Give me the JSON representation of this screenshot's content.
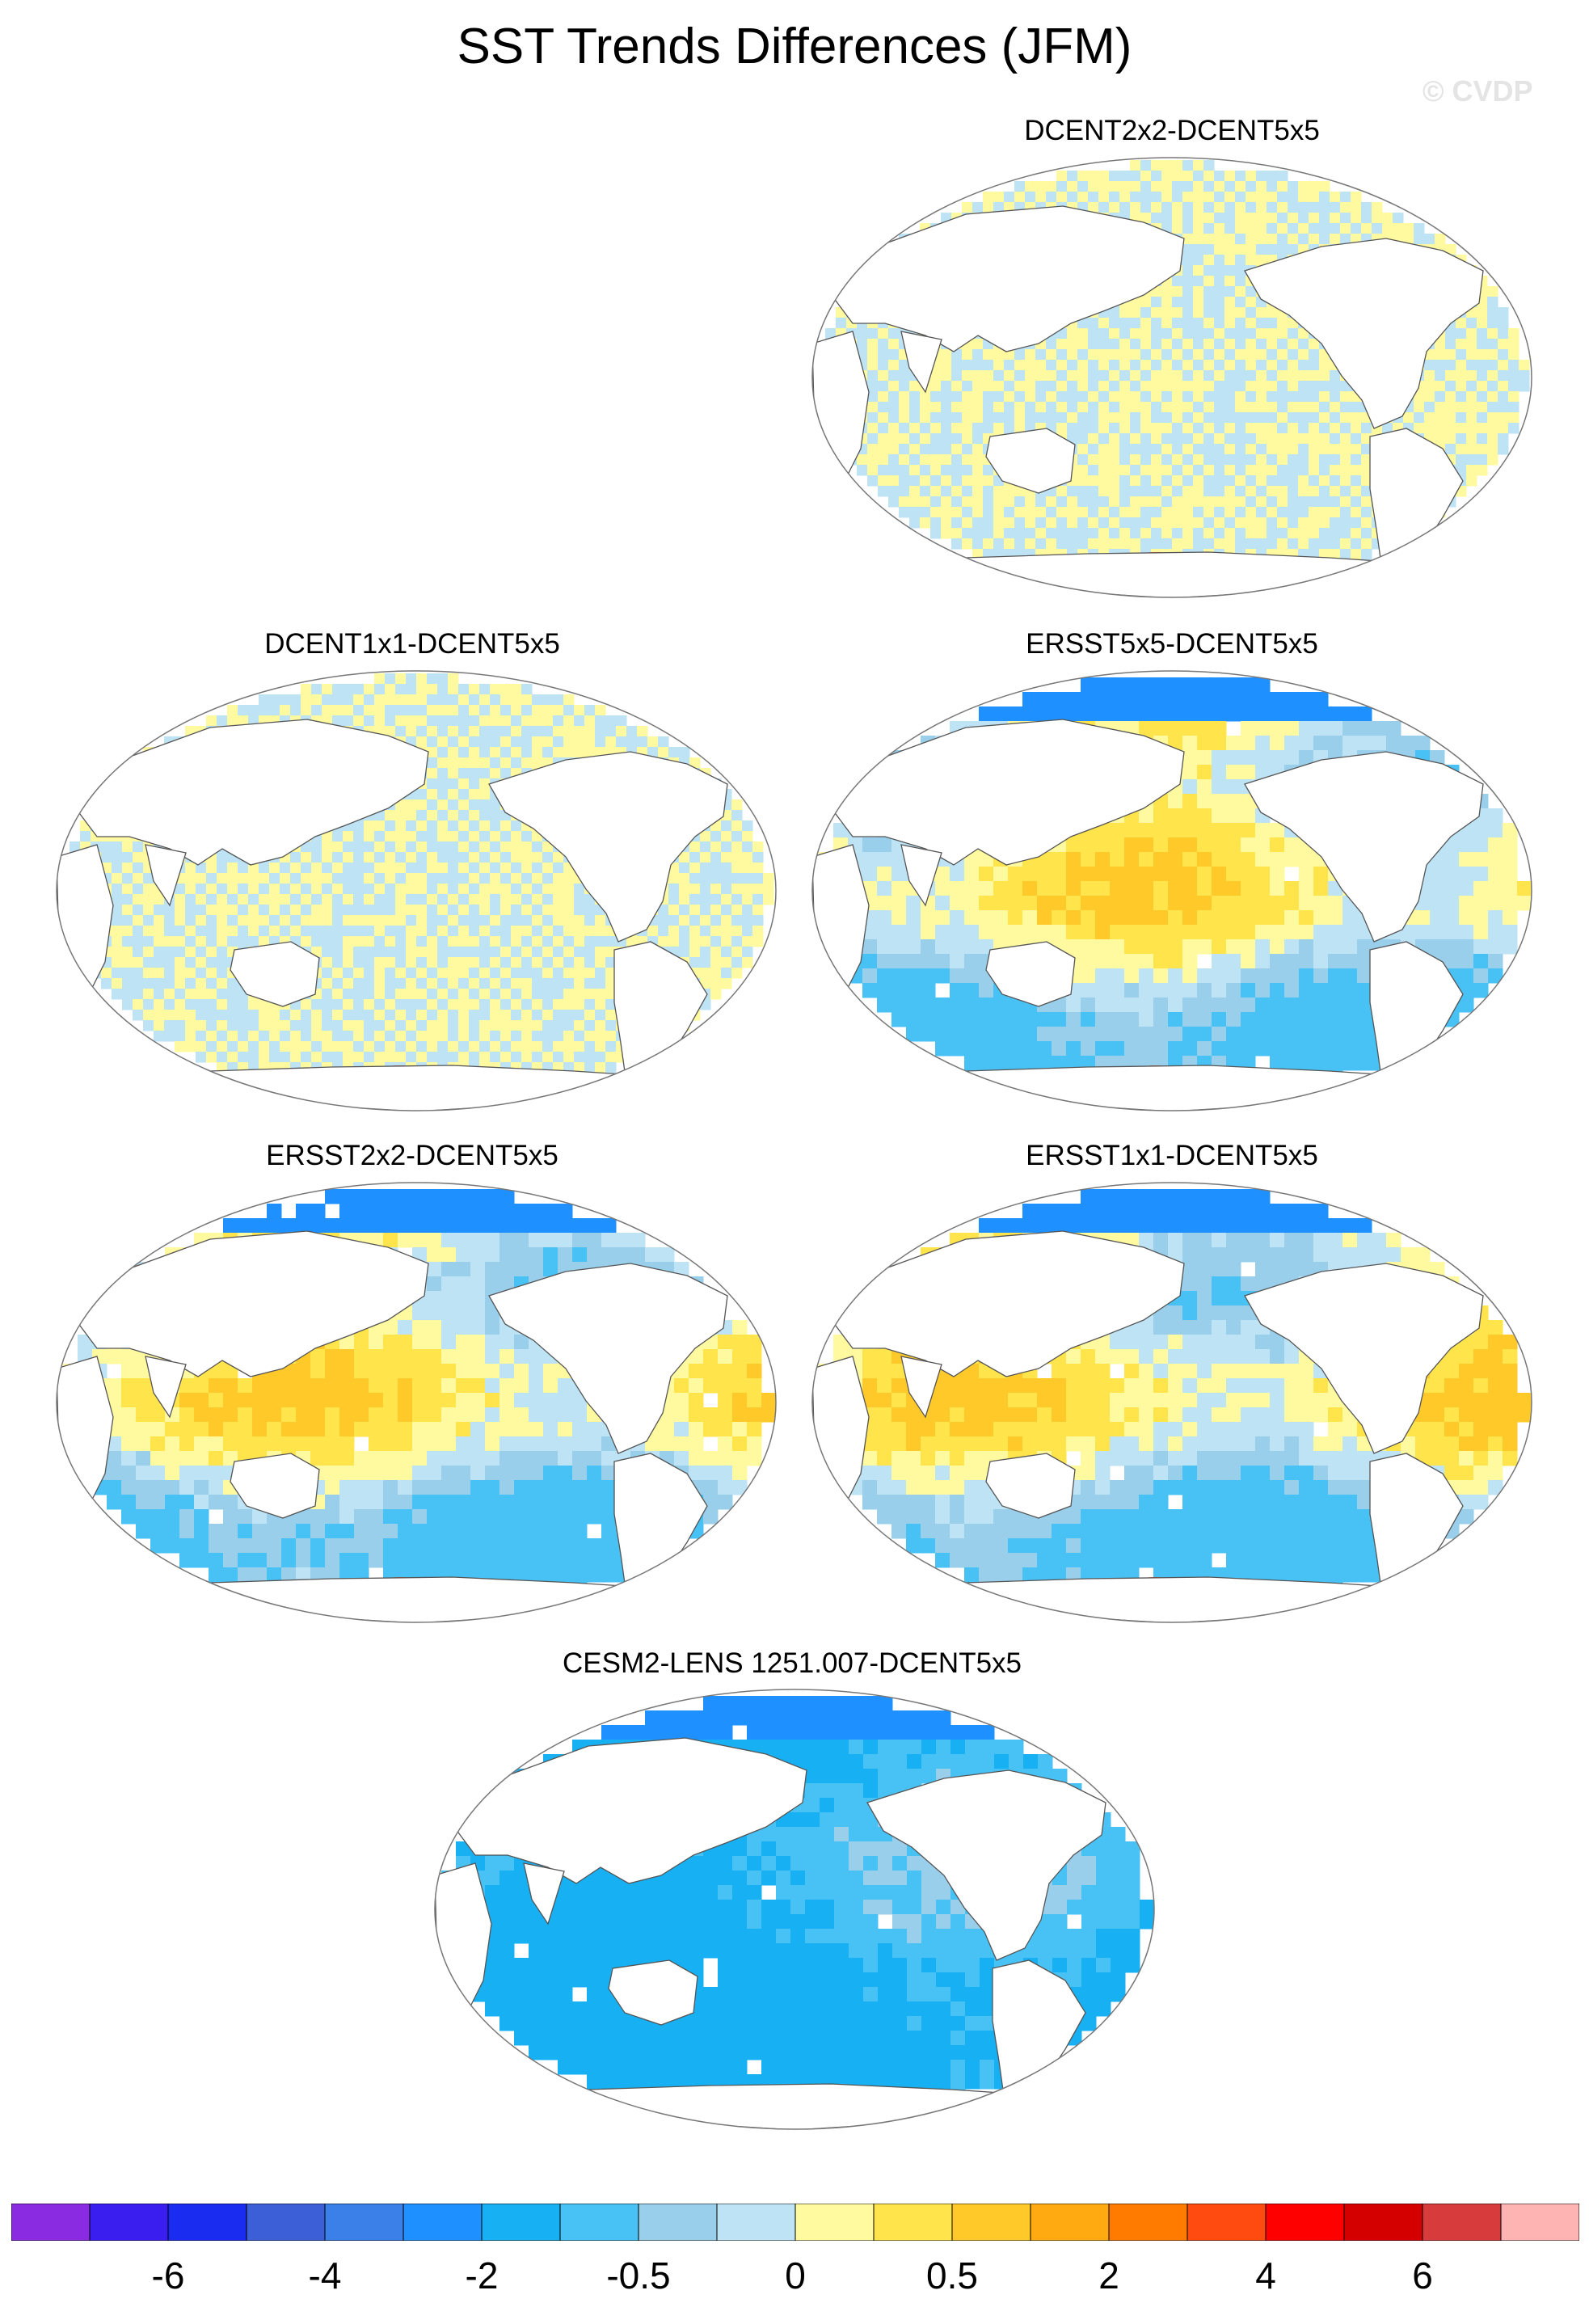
{
  "title": "SST Trends Differences (JFM)",
  "credit": "© CVDP",
  "panels": [
    {
      "title": "DCENT2x2-DCENT5x5",
      "pattern": "checker"
    },
    {
      "title": "DCENT1x1-DCENT5x5",
      "pattern": "checker"
    },
    {
      "title": "ERSST5x5-DCENT5x5",
      "pattern": "ersst"
    },
    {
      "title": "ERSST2x2-DCENT5x5",
      "pattern": "ersst"
    },
    {
      "title": "ERSST1x1-DCENT5x5",
      "pattern": "ersst"
    },
    {
      "title": "CESM2-LENS 1251.007-DCENT5x5",
      "pattern": "cesm"
    }
  ],
  "colorbar": {
    "colors": [
      "#8a2be2",
      "#3a1ef0",
      "#1a2cf0",
      "#3c5fd8",
      "#3a80e8",
      "#1e90ff",
      "#17b0f2",
      "#48c2f4",
      "#99cfea",
      "#bde3f5",
      "#fff9a0",
      "#ffe44c",
      "#ffc92a",
      "#ffaa10",
      "#ff7b00",
      "#ff4b10",
      "#ff0000",
      "#d40000",
      "#d83b3b",
      "#ffb4b4"
    ],
    "labels": [
      "-6",
      "-4",
      "-2",
      "-0.5",
      "0",
      "0.5",
      "2",
      "4",
      "6"
    ]
  }
}
